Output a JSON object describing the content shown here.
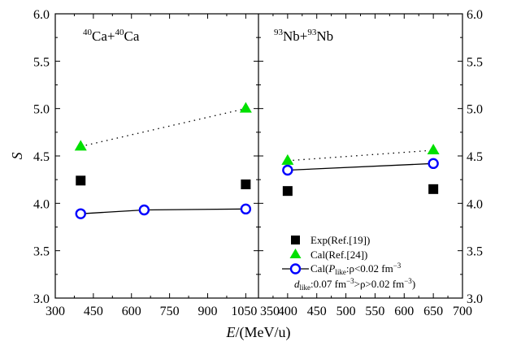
{
  "chart_data": [
    {
      "type": "scatter",
      "panel_title": {
        "base": "Ca+",
        "mass": "40",
        "rest": "Ca"
      },
      "xlim": [
        300,
        1100
      ],
      "xticks": [
        "300",
        "450",
        "600",
        "750",
        "900",
        "1050"
      ],
      "ylim": [
        3.0,
        6.0
      ],
      "yticks": [
        "3.0",
        "3.5",
        "4.0",
        "4.5",
        "5.0",
        "5.5",
        "6.0"
      ],
      "series": [
        {
          "key": "exp",
          "marker": "square",
          "color": "#000000",
          "line": "none",
          "x": [
            400,
            1050
          ],
          "y": [
            4.24,
            4.2
          ]
        },
        {
          "key": "ref24",
          "marker": "triangle",
          "color": "#00e000",
          "line": "dotted",
          "x": [
            400,
            1050
          ],
          "y": [
            4.6,
            5.0
          ]
        },
        {
          "key": "cal",
          "marker": "circle",
          "color": "#0000ff",
          "line": "solid",
          "x": [
            400,
            650,
            1050
          ],
          "y": [
            3.89,
            3.93,
            3.94
          ]
        }
      ]
    },
    {
      "type": "scatter",
      "panel_title": {
        "base": "Nb+",
        "mass": "93",
        "rest": "Nb"
      },
      "xlim": [
        350,
        700
      ],
      "xticks": [
        "350",
        "400",
        "450",
        "500",
        "550",
        "600",
        "650",
        "700"
      ],
      "ylim": [
        3.0,
        6.0
      ],
      "yticks": [
        "3.0",
        "3.5",
        "4.0",
        "4.5",
        "5.0",
        "5.5",
        "6.0"
      ],
      "series": [
        {
          "key": "exp",
          "marker": "square",
          "color": "#000000",
          "line": "none",
          "x": [
            400,
            650
          ],
          "y": [
            4.13,
            4.15
          ]
        },
        {
          "key": "ref24",
          "marker": "triangle",
          "color": "#00e000",
          "line": "dotted",
          "x": [
            400,
            650
          ],
          "y": [
            4.45,
            4.56
          ]
        },
        {
          "key": "cal",
          "marker": "circle",
          "color": "#0000ff",
          "line": "solid",
          "x": [
            400,
            650
          ],
          "y": [
            4.35,
            4.42
          ]
        }
      ]
    }
  ],
  "axes": {
    "ylabel": "S",
    "xlabel": {
      "var": "E",
      "unit": "/(MeV/u)"
    }
  },
  "legend": {
    "placement": "bottom-right of right panel",
    "exp": "Exp(Ref.[19])",
    "ref24": "Cal(Ref.[24])",
    "cal_line1": {
      "prefix": "Cal(",
      "var": "P",
      "sub": "like",
      "rest": ":ρ<0.02 fm",
      "sup": "−3"
    },
    "cal_line2": {
      "var": "d",
      "sub": "like",
      "mid": ":0.07 fm",
      "sup1": "−3",
      "mid2": ">ρ>0.02 fm",
      "sup2": "−3",
      "end": ")"
    }
  }
}
